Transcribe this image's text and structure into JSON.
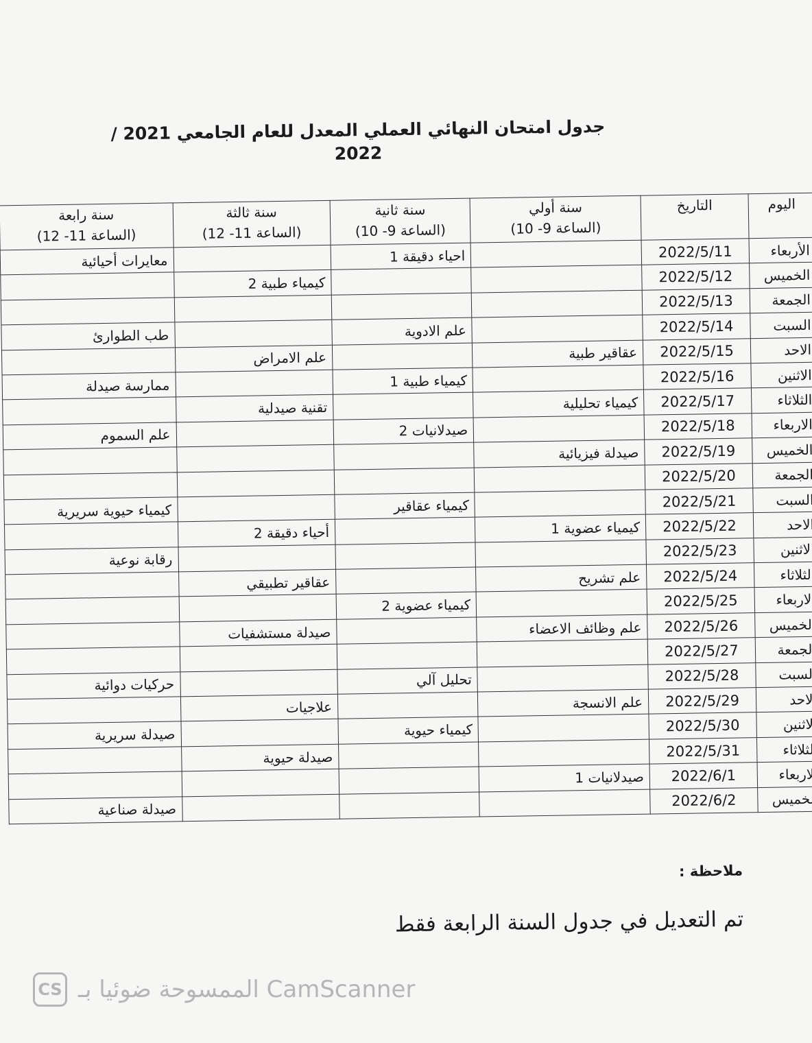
{
  "title": "جدول امتحان النهائي العملي المعدل للعام الجامعي 2021 / 2022",
  "headers": {
    "day": "اليوم",
    "date": "التاريخ",
    "year1": "سنة أولي",
    "year1_time": "(الساعة 9- 10)",
    "year2": "سنة ثانية",
    "year2_time": "(الساعة 9- 10)",
    "year3": "سنة ثالثة",
    "year3_time": "(الساعة 11- 12)",
    "year4": "سنة رابعة",
    "year4_time": "(الساعة 11- 12)"
  },
  "rows": [
    {
      "day": "الأربعاء",
      "date": "2022/5/11",
      "y1": "",
      "y2": "احياء دقيقة 1",
      "y3": "",
      "y4": "معايرات أحيائية"
    },
    {
      "day": "الخميس",
      "date": "2022/5/12",
      "y1": "",
      "y2": "",
      "y3": "كيمياء طبية 2",
      "y4": ""
    },
    {
      "day": "الجمعة",
      "date": "2022/5/13",
      "y1": "",
      "y2": "",
      "y3": "",
      "y4": ""
    },
    {
      "day": "السبت",
      "date": "2022/5/14",
      "y1": "",
      "y2": "علم الادوية",
      "y3": "",
      "y4": "طب الطوارئ"
    },
    {
      "day": "الاحد",
      "date": "2022/5/15",
      "y1": "عقاقير طبية",
      "y2": "",
      "y3": "علم الامراض",
      "y4": ""
    },
    {
      "day": "الاثنين",
      "date": "2022/5/16",
      "y1": "",
      "y2": "كيمياء طبية 1",
      "y3": "",
      "y4": "ممارسة صيدلة"
    },
    {
      "day": "الثلاثاء",
      "date": "2022/5/17",
      "y1": "كيمياء تحليلية",
      "y2": "",
      "y3": "تقنية صيدلية",
      "y4": ""
    },
    {
      "day": "الاربعاء",
      "date": "2022/5/18",
      "y1": "",
      "y2": "صيدلانيات 2",
      "y3": "",
      "y4": "علم السموم"
    },
    {
      "day": "الخميس",
      "date": "2022/5/19",
      "y1": "صيدلة فيزيائية",
      "y2": "",
      "y3": "",
      "y4": ""
    },
    {
      "day": "الجمعة",
      "date": "2022/5/20",
      "y1": "",
      "y2": "",
      "y3": "",
      "y4": ""
    },
    {
      "day": "السبت",
      "date": "2022/5/21",
      "y1": "",
      "y2": "كيمياء عقاقير",
      "y3": "",
      "y4": "كيمياء حيوية سريرية"
    },
    {
      "day": "الاحد",
      "date": "2022/5/22",
      "y1": "كيمياء عضوية 1",
      "y2": "",
      "y3": "أحياء دقيقة 2",
      "y4": ""
    },
    {
      "day": "الاثنين",
      "date": "2022/5/23",
      "y1": "",
      "y2": "",
      "y3": "",
      "y4": "رقابة نوعية"
    },
    {
      "day": "الثلاثاء",
      "date": "2022/5/24",
      "y1": "علم تشريح",
      "y2": "",
      "y3": "عقاقير تطبيقي",
      "y4": ""
    },
    {
      "day": "الاربعاء",
      "date": "2022/5/25",
      "y1": "",
      "y2": "كيمياء عضوية 2",
      "y3": "",
      "y4": ""
    },
    {
      "day": "الخميس",
      "date": "2022/5/26",
      "y1": "علم وظائف الاعضاء",
      "y2": "",
      "y3": "صيدلة مستشفيات",
      "y4": ""
    },
    {
      "day": "الجمعة",
      "date": "2022/5/27",
      "y1": "",
      "y2": "",
      "y3": "",
      "y4": ""
    },
    {
      "day": "السبت",
      "date": "2022/5/28",
      "y1": "",
      "y2": "تحليل آلي",
      "y3": "",
      "y4": "حركيات دوائية"
    },
    {
      "day": "الاحد",
      "date": "2022/5/29",
      "y1": "علم الانسجة",
      "y2": "",
      "y3": "علاجيات",
      "y4": ""
    },
    {
      "day": "الاثنين",
      "date": "2022/5/30",
      "y1": "",
      "y2": "كيمياء حيوية",
      "y3": "",
      "y4": "صيدلة سريرية"
    },
    {
      "day": "الثلاثاء",
      "date": "2022/5/31",
      "y1": "",
      "y2": "",
      "y3": "صيدلة حيوية",
      "y4": ""
    },
    {
      "day": "الاربعاء",
      "date": "2022/6/1",
      "y1": "صيدلانيات 1",
      "y2": "",
      "y3": "",
      "y4": ""
    },
    {
      "day": "الخميس",
      "date": "2022/6/2",
      "y1": "",
      "y2": "",
      "y3": "",
      "y4": "صيدلة صناعية"
    }
  ],
  "note_label": "ملاحظة :",
  "note": "تم التعديل في جدول السنة الرابعة فقط",
  "watermark": {
    "logo": "CS",
    "text": "الممسوحة ضوئيا بـ CamScanner"
  }
}
